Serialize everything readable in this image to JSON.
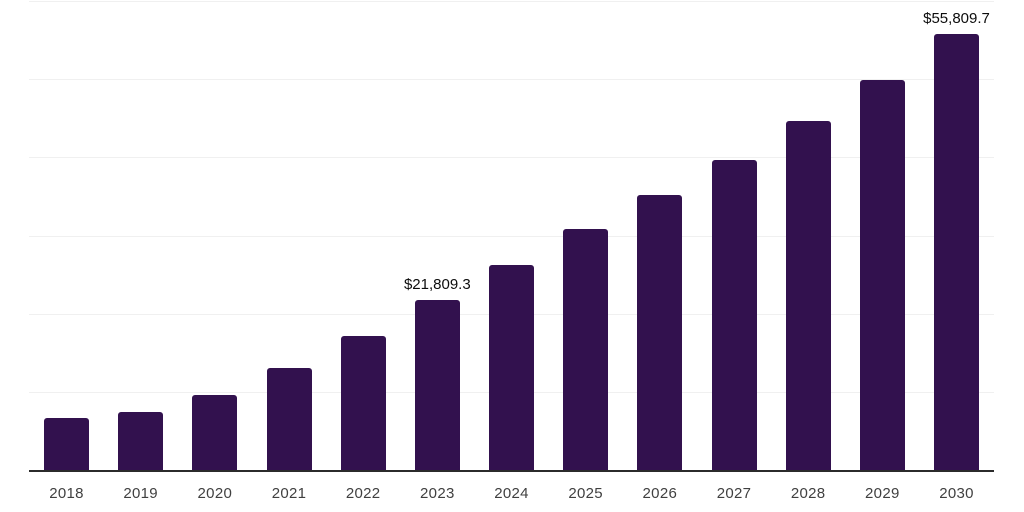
{
  "chart_data": {
    "type": "bar",
    "title": "",
    "xlabel": "",
    "ylabel": "",
    "categories": [
      "2018",
      "2019",
      "2020",
      "2021",
      "2022",
      "2023",
      "2024",
      "2025",
      "2026",
      "2027",
      "2028",
      "2029",
      "2030"
    ],
    "values": [
      6700,
      7400,
      9600,
      13000,
      17100,
      21809.3,
      26200,
      30800,
      35200,
      39700,
      44600,
      49900,
      55809.7
    ],
    "ylim": [
      0,
      60000
    ],
    "grid": true,
    "grid_interval": 10000,
    "legend": false,
    "annotations": [
      {
        "category": "2023",
        "text": "$21,809.3"
      },
      {
        "category": "2030",
        "text": "$55,809.7"
      }
    ],
    "colors": {
      "bar": "#32114E",
      "axis_line": "#2b2b2b",
      "gridline": "#f0f0f0",
      "tick_label": "#404040",
      "annotation_text": "#0d0d0d",
      "background": "#ffffff"
    }
  }
}
